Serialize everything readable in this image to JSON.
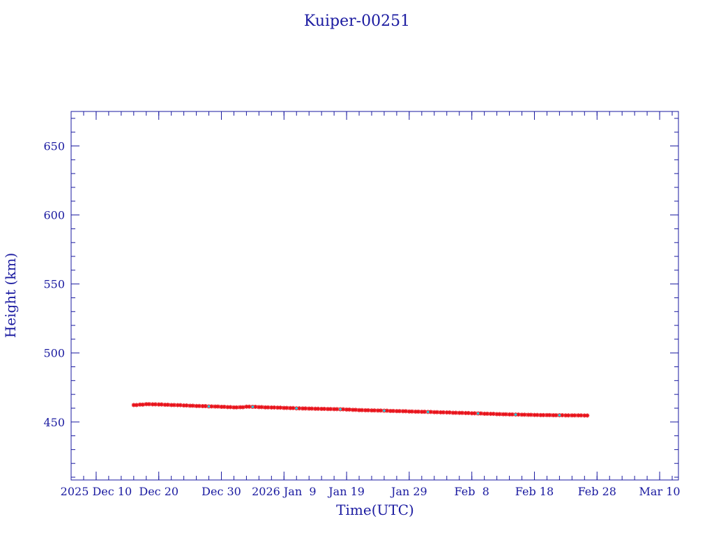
{
  "chart_data": {
    "type": "scatter",
    "title": "Kuiper-00251",
    "xlabel": "Time(UTC)",
    "ylabel": "Height (km)",
    "xlim": [
      "2025-12-06",
      "2026-03-13"
    ],
    "ylim": [
      408,
      675
    ],
    "x_ticks": [
      {
        "date": "2025-12-10",
        "label": "2025 Dec 10"
      },
      {
        "date": "2025-12-20",
        "label": "Dec 20"
      },
      {
        "date": "2025-12-30",
        "label": "Dec 30"
      },
      {
        "date": "2026-01-09",
        "label": "2026 Jan  9"
      },
      {
        "date": "2026-01-19",
        "label": "Jan 19"
      },
      {
        "date": "2026-01-29",
        "label": "Jan 29"
      },
      {
        "date": "2026-02-08",
        "label": "Feb  8"
      },
      {
        "date": "2026-02-18",
        "label": "Feb 18"
      },
      {
        "date": "2026-02-28",
        "label": "Feb 28"
      },
      {
        "date": "2026-03-10",
        "label": "Mar 10"
      }
    ],
    "y_ticks": [
      450,
      500,
      550,
      600,
      650
    ],
    "grid": false,
    "series": [
      {
        "color": "#e8121a",
        "marker": "star",
        "points": [
          [
            "2025-12-16",
            462.3
          ],
          [
            "2025-12-17",
            462.6
          ],
          [
            "2025-12-18",
            462.9
          ],
          [
            "2025-12-19",
            462.8
          ],
          [
            "2025-12-20",
            462.7
          ],
          [
            "2025-12-21",
            462.5
          ],
          [
            "2025-12-22",
            462.3
          ],
          [
            "2025-12-23",
            462.2
          ],
          [
            "2025-12-24",
            462.0
          ],
          [
            "2025-12-25",
            461.8
          ],
          [
            "2025-12-26",
            461.6
          ],
          [
            "2025-12-27",
            461.5
          ],
          [
            "2025-12-28",
            461.3
          ],
          [
            "2025-12-29",
            461.2
          ],
          [
            "2025-12-30",
            461.0
          ],
          [
            "2025-12-31",
            460.8
          ],
          [
            "2026-01-01",
            460.6
          ],
          [
            "2026-01-02",
            460.7
          ],
          [
            "2026-01-03",
            461.1
          ],
          [
            "2026-01-04",
            461.0
          ],
          [
            "2026-01-05",
            460.8
          ],
          [
            "2026-01-06",
            460.6
          ],
          [
            "2026-01-07",
            460.5
          ],
          [
            "2026-01-08",
            460.4
          ],
          [
            "2026-01-09",
            460.2
          ],
          [
            "2026-01-10",
            460.1
          ],
          [
            "2026-01-11",
            459.9
          ],
          [
            "2026-01-12",
            459.8
          ],
          [
            "2026-01-13",
            459.7
          ],
          [
            "2026-01-14",
            459.6
          ],
          [
            "2026-01-15",
            459.5
          ],
          [
            "2026-01-16",
            459.4
          ],
          [
            "2026-01-17",
            459.3
          ],
          [
            "2026-01-18",
            459.2
          ],
          [
            "2026-01-19",
            459.0
          ],
          [
            "2026-01-20",
            458.8
          ],
          [
            "2026-01-21",
            458.6
          ],
          [
            "2026-01-22",
            458.5
          ],
          [
            "2026-01-23",
            458.4
          ],
          [
            "2026-01-24",
            458.3
          ],
          [
            "2026-01-25",
            458.2
          ],
          [
            "2026-01-26",
            458.0
          ],
          [
            "2026-01-27",
            457.9
          ],
          [
            "2026-01-28",
            457.8
          ],
          [
            "2026-01-29",
            457.6
          ],
          [
            "2026-01-30",
            457.5
          ],
          [
            "2026-01-31",
            457.4
          ],
          [
            "2026-02-01",
            457.3
          ],
          [
            "2026-02-02",
            457.1
          ],
          [
            "2026-02-03",
            457.0
          ],
          [
            "2026-02-04",
            456.9
          ],
          [
            "2026-02-05",
            456.7
          ],
          [
            "2026-02-06",
            456.6
          ],
          [
            "2026-02-07",
            456.5
          ],
          [
            "2026-02-08",
            456.3
          ],
          [
            "2026-02-09",
            456.2
          ],
          [
            "2026-02-10",
            456.0
          ],
          [
            "2026-02-11",
            455.9
          ],
          [
            "2026-02-12",
            455.7
          ],
          [
            "2026-02-13",
            455.6
          ],
          [
            "2026-02-14",
            455.5
          ],
          [
            "2026-02-15",
            455.4
          ],
          [
            "2026-02-16",
            455.3
          ],
          [
            "2026-02-17",
            455.2
          ],
          [
            "2026-02-18",
            455.1
          ],
          [
            "2026-02-19",
            455.0
          ],
          [
            "2026-02-20",
            455.0
          ],
          [
            "2026-02-21",
            454.9
          ],
          [
            "2026-02-22",
            454.9
          ],
          [
            "2026-02-23",
            454.8
          ],
          [
            "2026-02-24",
            454.8
          ],
          [
            "2026-02-25",
            454.8
          ],
          [
            "2026-02-26",
            454.7
          ]
        ]
      },
      {
        "color": "#28c8d8",
        "marker": "dot",
        "points": [
          [
            "2025-12-28",
            461.3
          ],
          [
            "2026-01-04",
            461.0
          ],
          [
            "2026-01-11",
            459.9
          ],
          [
            "2026-01-18",
            459.2
          ],
          [
            "2026-01-25",
            458.2
          ],
          [
            "2026-02-01",
            457.3
          ],
          [
            "2026-02-09",
            456.2
          ],
          [
            "2026-02-15",
            455.4
          ],
          [
            "2026-02-22",
            454.9
          ]
        ]
      }
    ],
    "colors": {
      "axis": "#1a1aa0",
      "text": "#1a1aa0",
      "title": "#1a1aa0",
      "background": "#ffffff"
    }
  }
}
